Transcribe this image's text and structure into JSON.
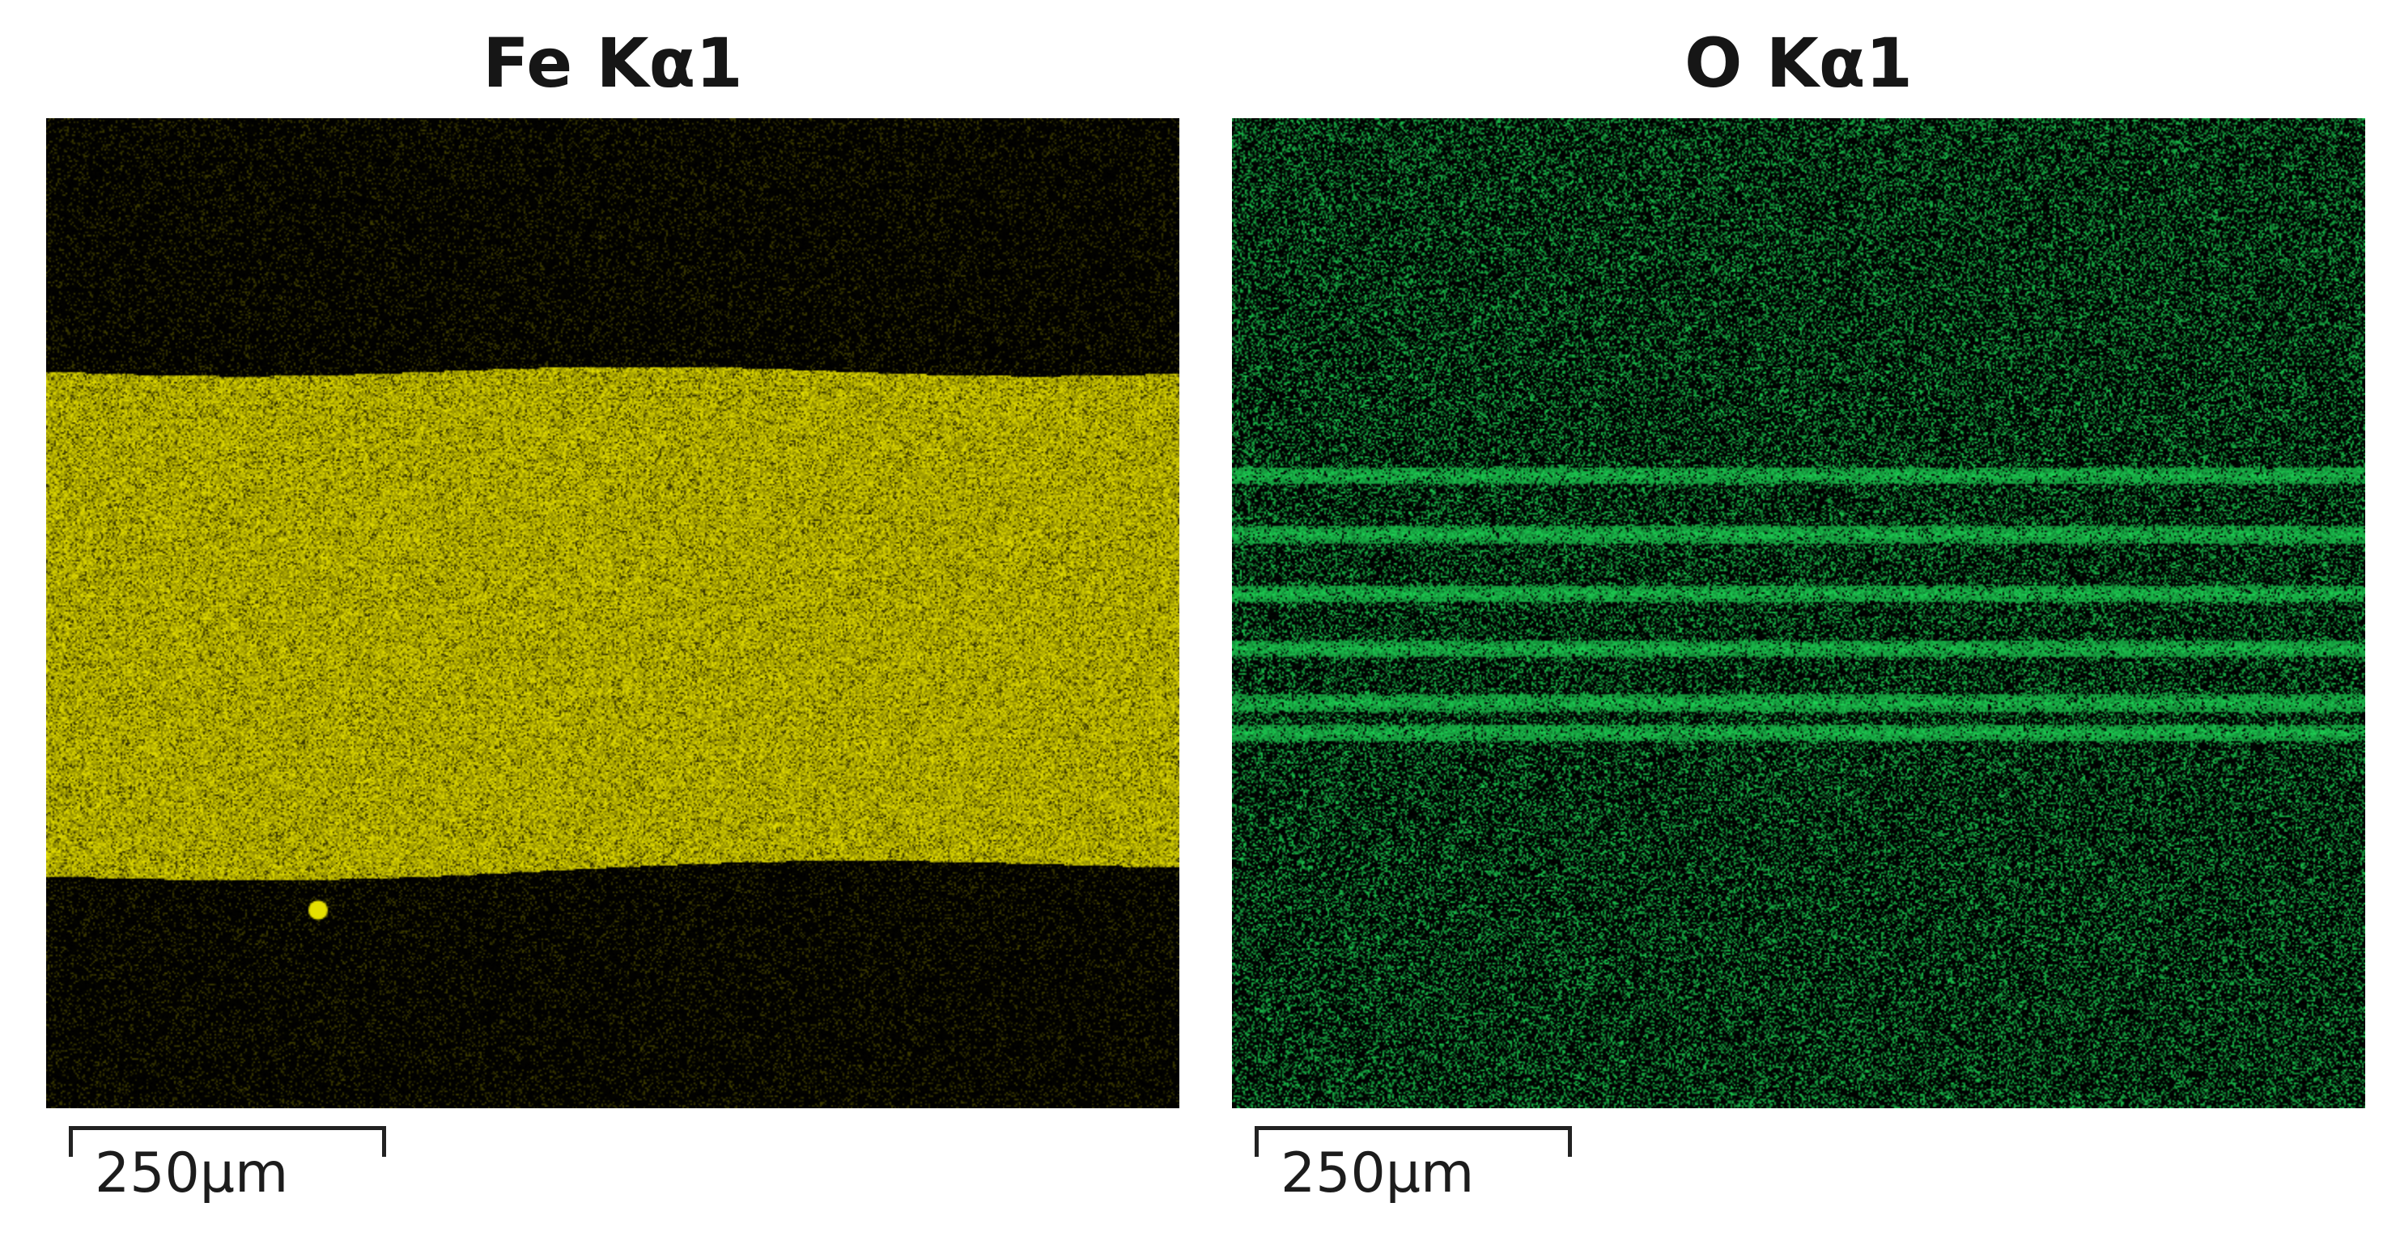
{
  "panels": [
    {
      "title": "Fe Kα1",
      "element": "Fe",
      "line": "Kα1",
      "map_color": "#e6e000",
      "map_background": "#000000",
      "scale_label": "250μm"
    },
    {
      "title": "O Kα1",
      "element": "O",
      "line": "Kα1",
      "map_color": "#1fe05a",
      "map_background": "#000000",
      "scale_label": "250μm"
    }
  ]
}
